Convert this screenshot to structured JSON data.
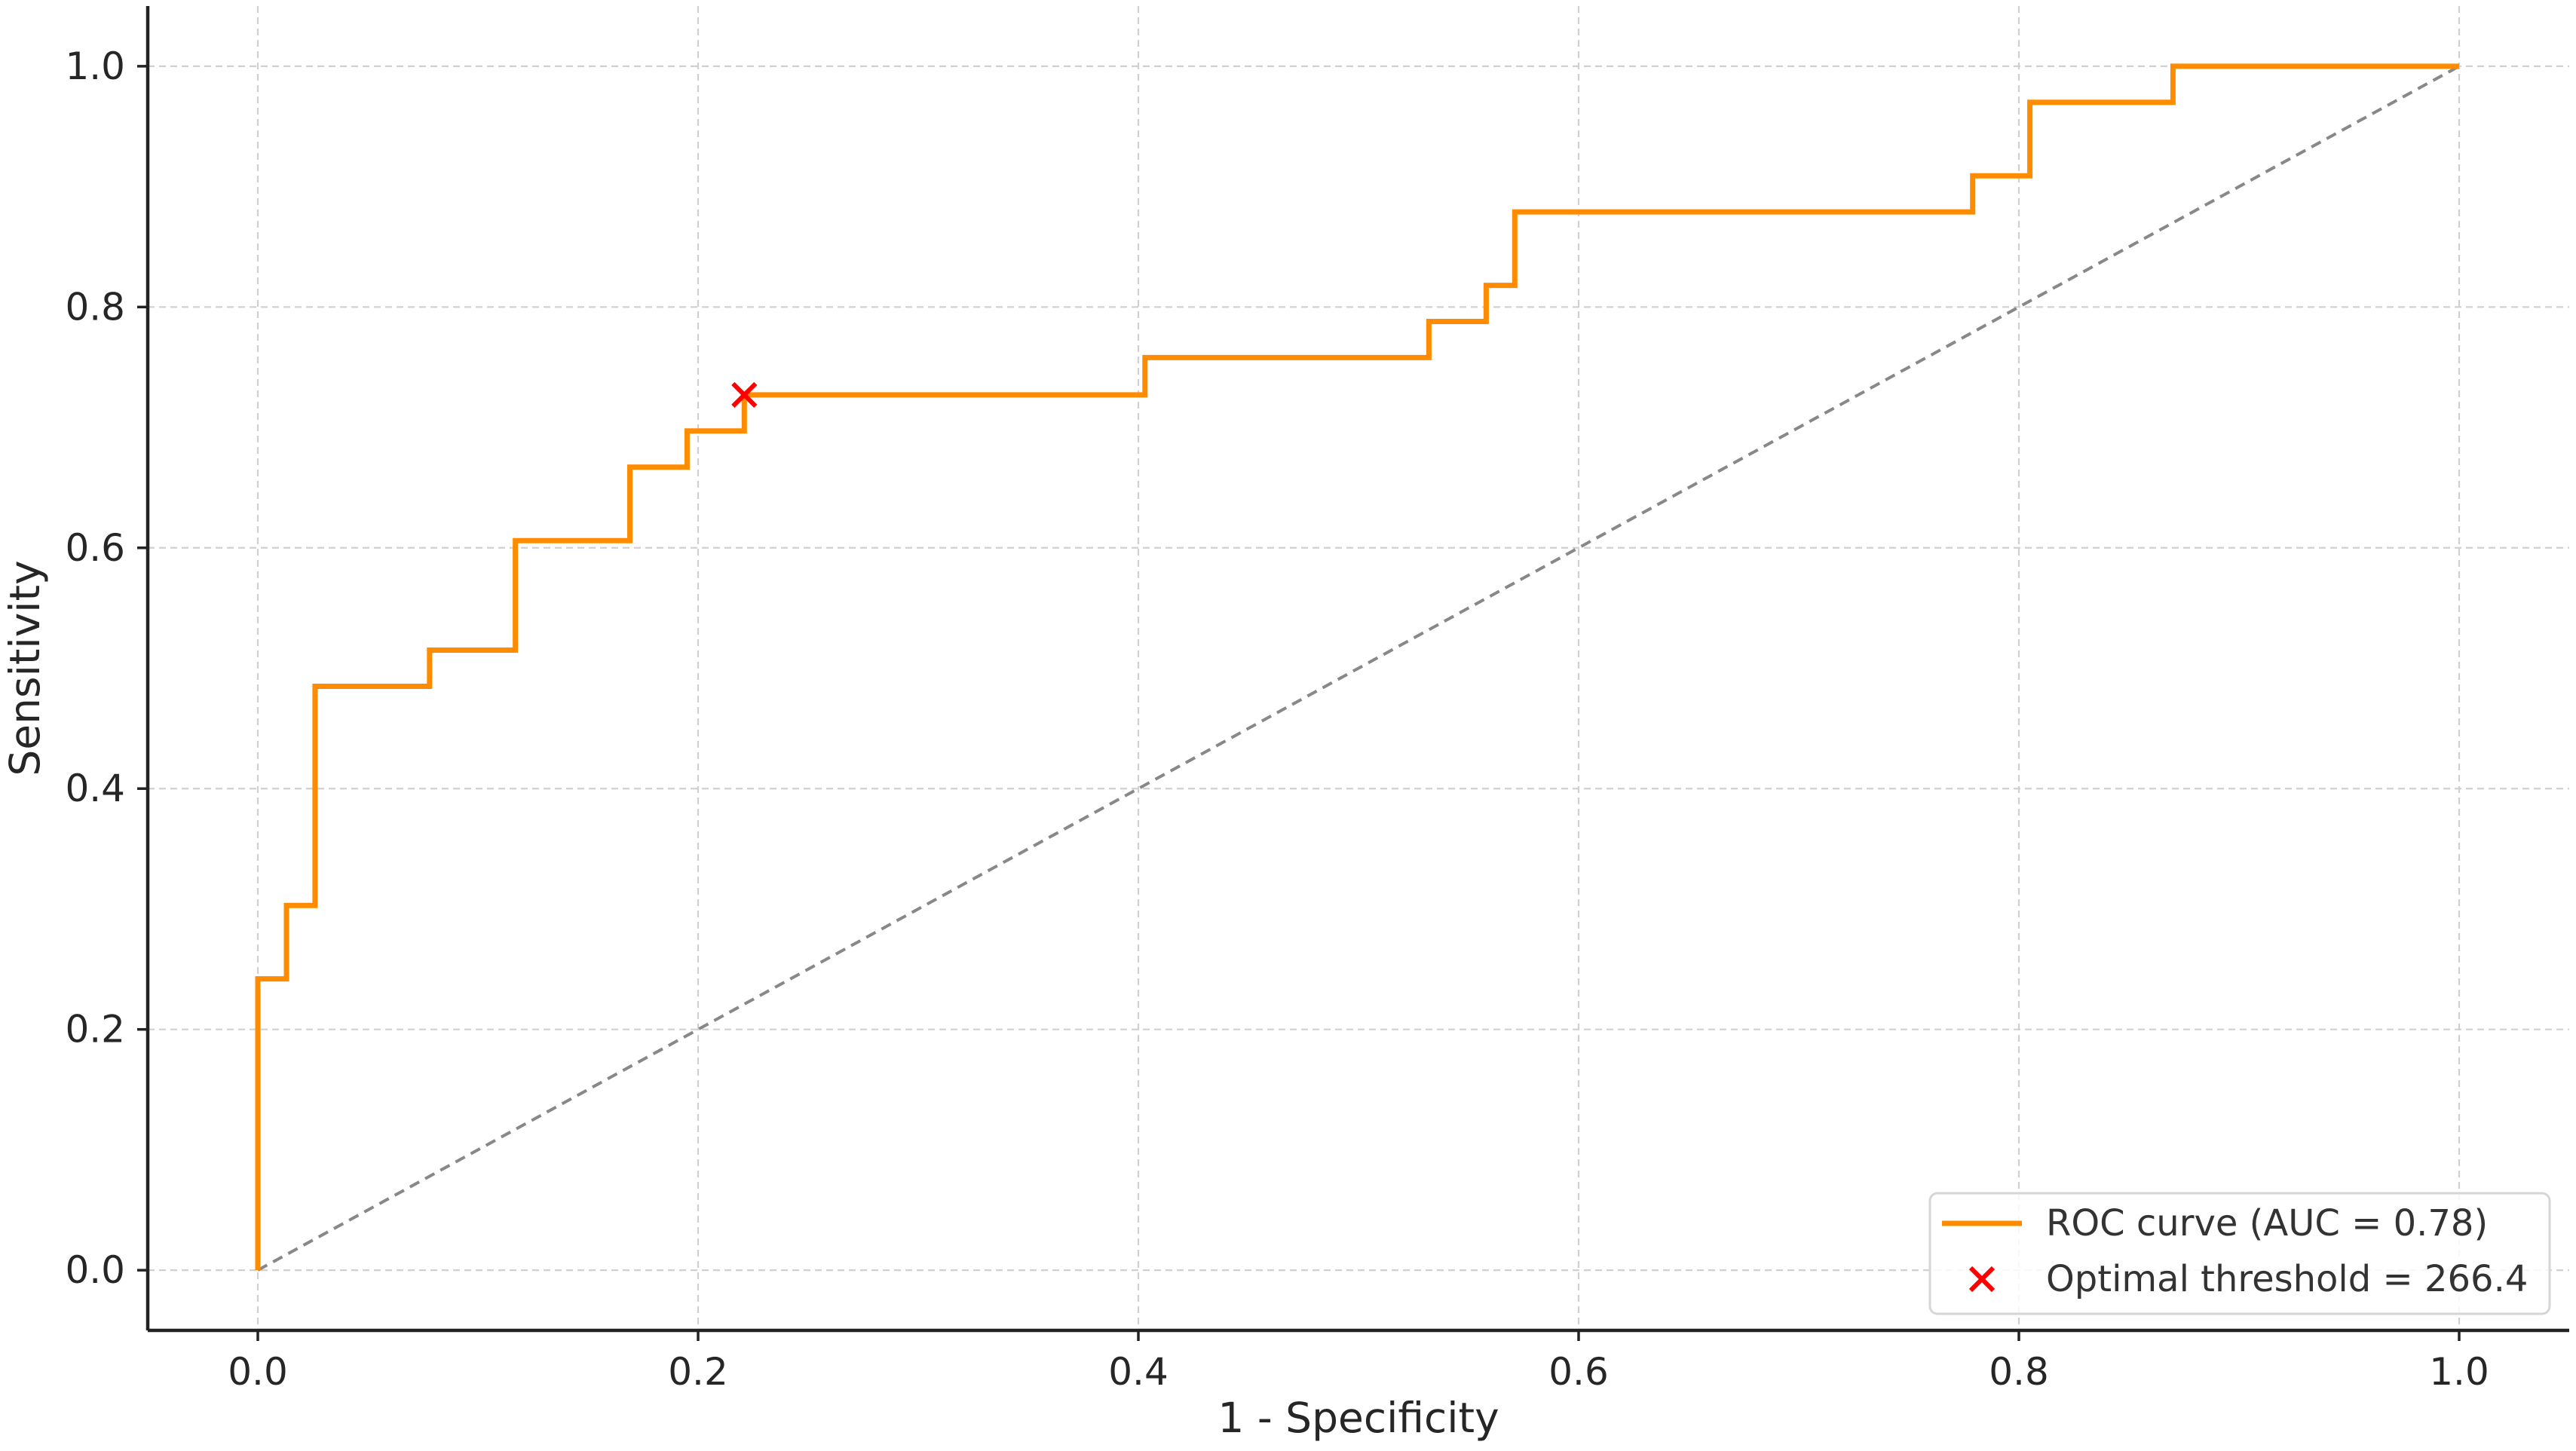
{
  "chart_data": {
    "type": "line",
    "title": "",
    "xlabel": "1 - Specificity",
    "ylabel": "Sensitivity",
    "xlim": [
      -0.05,
      1.05
    ],
    "ylim": [
      -0.05,
      1.05
    ],
    "x_ticks": [
      "0.0",
      "0.2",
      "0.4",
      "0.6",
      "0.8",
      "1.0"
    ],
    "y_ticks": [
      "0.0",
      "0.2",
      "0.4",
      "0.6",
      "0.8",
      "1.0"
    ],
    "grid": true,
    "legend_position": "bottom-right",
    "series": [
      {
        "name": "ROC curve (AUC = 0.78)",
        "color": "#ff8c00",
        "style": "step",
        "points": [
          [
            0.0,
            0.0
          ],
          [
            0.0,
            0.242
          ],
          [
            0.013,
            0.242
          ],
          [
            0.013,
            0.303
          ],
          [
            0.026,
            0.303
          ],
          [
            0.026,
            0.485
          ],
          [
            0.078,
            0.485
          ],
          [
            0.078,
            0.515
          ],
          [
            0.117,
            0.515
          ],
          [
            0.117,
            0.606
          ],
          [
            0.169,
            0.606
          ],
          [
            0.169,
            0.667
          ],
          [
            0.195,
            0.667
          ],
          [
            0.195,
            0.697
          ],
          [
            0.221,
            0.697
          ],
          [
            0.221,
            0.727
          ],
          [
            0.403,
            0.727
          ],
          [
            0.403,
            0.758
          ],
          [
            0.532,
            0.758
          ],
          [
            0.532,
            0.788
          ],
          [
            0.558,
            0.788
          ],
          [
            0.558,
            0.818
          ],
          [
            0.571,
            0.818
          ],
          [
            0.571,
            0.879
          ],
          [
            0.779,
            0.879
          ],
          [
            0.779,
            0.909
          ],
          [
            0.805,
            0.909
          ],
          [
            0.805,
            0.97
          ],
          [
            0.87,
            0.97
          ],
          [
            0.87,
            1.0
          ],
          [
            1.0,
            1.0
          ]
        ]
      },
      {
        "name": "Optimal threshold = 266.4",
        "color": "#ff0000",
        "marker": "x",
        "points": [
          [
            0.221,
            0.727
          ]
        ]
      }
    ],
    "reference_line": {
      "points": [
        [
          0.0,
          0.0
        ],
        [
          1.0,
          1.0
        ]
      ],
      "color": "#888888",
      "style": "dashed"
    }
  }
}
